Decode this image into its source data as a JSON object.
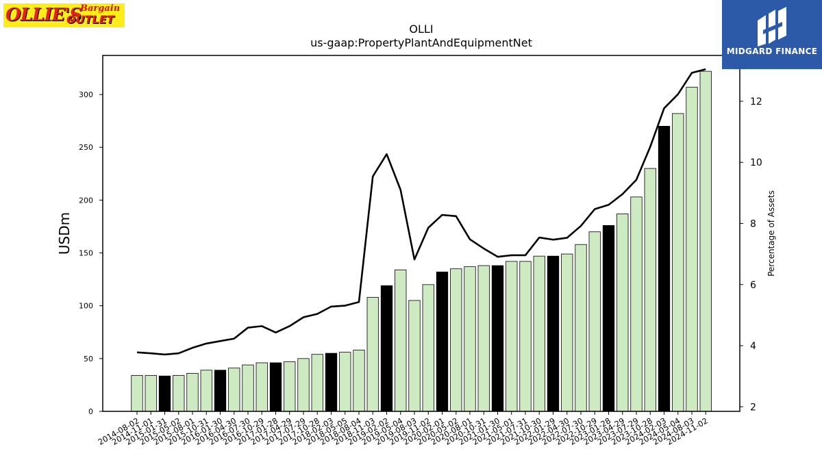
{
  "logos": {
    "left_brand_text_1": "OLLIE'S",
    "left_brand_text_2": "Bargain",
    "left_brand_text_3": "OUTLET",
    "right_brand_name": "MIDGARD FINANCE"
  },
  "chart_data": {
    "type": "bar",
    "title": "OLLI",
    "subtitle": "us-gaap:PropertyPlantAndEquipmentNet",
    "ylabel": "USDm",
    "y2label": "Percentage of Assets",
    "ylim": [
      0,
      337
    ],
    "y2lim": [
      1.85,
      13.5
    ],
    "yticks": [
      0,
      50,
      100,
      150,
      200,
      250,
      300
    ],
    "y2ticks": [
      2,
      4,
      6,
      8,
      10,
      12
    ],
    "grid": false,
    "colors": {
      "bar_default": "#cdeac3",
      "bar_highlight": "#000000",
      "line": "#000000"
    },
    "categories": [
      "2014-08-02",
      "2014-11-01",
      "2015-01-31",
      "2015-05-02",
      "2015-08-01",
      "2015-10-31",
      "2016-01-30",
      "2016-04-30",
      "2016-07-30",
      "2016-10-29",
      "2017-01-28",
      "2017-04-29",
      "2017-07-29",
      "2017-10-28",
      "2018-02-03",
      "2018-05-05",
      "2018-08-04",
      "2018-11-03",
      "2019-02-02",
      "2019-05-04",
      "2019-08-03",
      "2019-11-02",
      "2020-02-01",
      "2020-05-02",
      "2020-08-01",
      "2020-10-31",
      "2021-01-30",
      "2021-05-01",
      "2021-07-31",
      "2021-10-30",
      "2022-01-29",
      "2022-04-30",
      "2022-07-30",
      "2022-10-29",
      "2023-01-28",
      "2023-04-29",
      "2023-07-29",
      "2023-10-28",
      "2024-02-03",
      "2024-05-04",
      "2024-08-03",
      "2024-11-02"
    ],
    "series": [
      {
        "type": "bar",
        "values": [
          34,
          34,
          33.5,
          34,
          36,
          39,
          39,
          41,
          44,
          46,
          46,
          47,
          50,
          54,
          55,
          56,
          58,
          108,
          119,
          134,
          105,
          120,
          132,
          135,
          137,
          138,
          138,
          142,
          142,
          147,
          147,
          149,
          158,
          170,
          176,
          187,
          203,
          230,
          270,
          282,
          307,
          322
        ],
        "highlight": [
          false,
          false,
          true,
          false,
          false,
          false,
          true,
          false,
          false,
          false,
          true,
          false,
          false,
          false,
          true,
          false,
          false,
          false,
          true,
          false,
          false,
          false,
          true,
          false,
          false,
          false,
          true,
          false,
          false,
          false,
          true,
          false,
          false,
          false,
          true,
          false,
          false,
          false,
          true,
          false,
          false,
          false
        ]
      },
      {
        "type": "line",
        "axis": "right",
        "values": [
          3.78,
          3.75,
          3.71,
          3.75,
          3.93,
          4.07,
          4.15,
          4.23,
          4.59,
          4.64,
          4.43,
          4.64,
          4.93,
          5.04,
          5.28,
          5.31,
          5.43,
          9.54,
          10.27,
          9.1,
          6.82,
          7.86,
          8.28,
          8.24,
          7.48,
          7.18,
          6.91,
          6.96,
          6.96,
          7.54,
          7.47,
          7.53,
          7.92,
          8.47,
          8.61,
          8.96,
          9.43,
          10.51,
          11.77,
          12.23,
          12.93,
          13.05
        ]
      }
    ]
  }
}
